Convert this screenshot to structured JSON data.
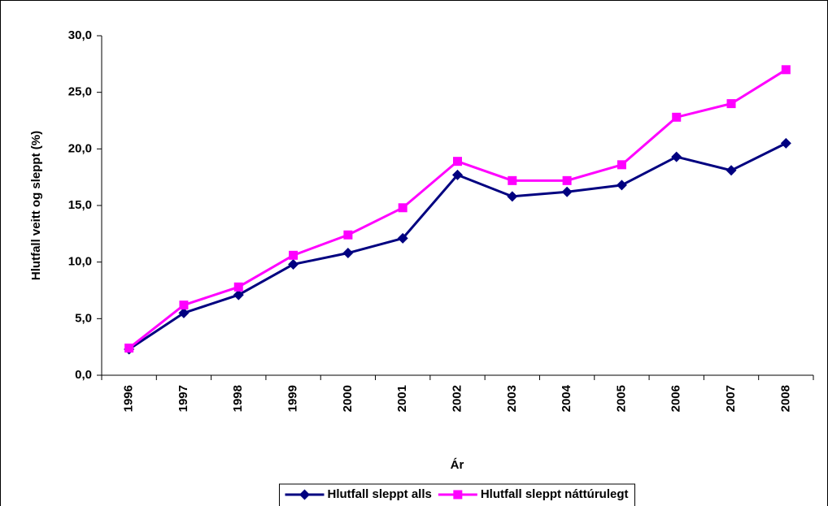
{
  "chart_data": {
    "type": "line",
    "xlabel": "Ár",
    "ylabel": "Hlutfall veitt og sleppt (%)",
    "categories": [
      "1996",
      "1997",
      "1998",
      "1999",
      "2000",
      "2001",
      "2002",
      "2003",
      "2004",
      "2005",
      "2006",
      "2007",
      "2008"
    ],
    "series": [
      {
        "name": "Hlutfall sleppt alls",
        "color": "#000080",
        "marker": "diamond",
        "values": [
          2.3,
          5.5,
          7.1,
          9.8,
          10.8,
          12.1,
          17.7,
          15.8,
          16.2,
          16.8,
          19.3,
          18.1,
          20.5
        ]
      },
      {
        "name": "Hlutfall sleppt náttúrulegt",
        "color": "#ff00ff",
        "marker": "square",
        "values": [
          2.4,
          6.2,
          7.8,
          10.6,
          12.4,
          14.8,
          18.9,
          17.2,
          17.2,
          18.6,
          22.8,
          24.0,
          27.0
        ]
      }
    ],
    "ylim": [
      0,
      30
    ],
    "yticks": [
      {
        "value": 0,
        "label": "0,0"
      },
      {
        "value": 5,
        "label": "5,0"
      },
      {
        "value": 10,
        "label": "10,0"
      },
      {
        "value": 15,
        "label": "15,0"
      },
      {
        "value": 20,
        "label": "20,0"
      },
      {
        "value": 25,
        "label": "25,0"
      },
      {
        "value": 30,
        "label": "30,0"
      }
    ],
    "grid": false,
    "legend": "bottom"
  }
}
